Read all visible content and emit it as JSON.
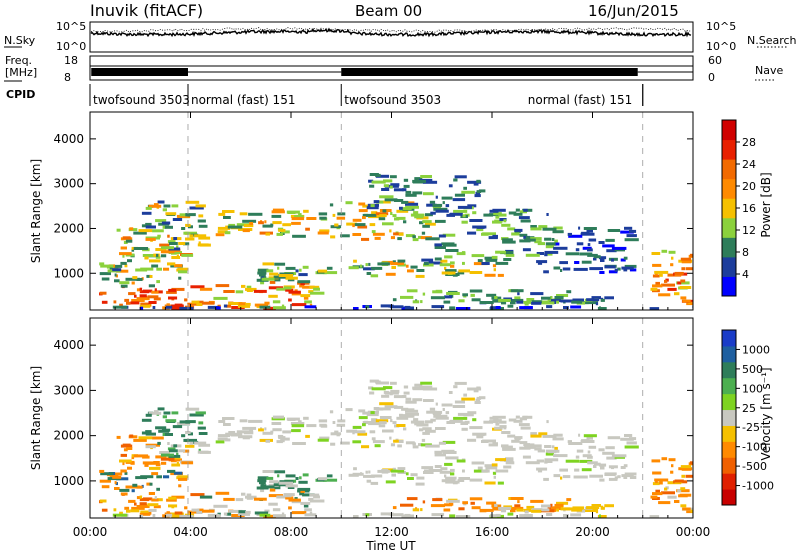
{
  "header": {
    "site": "Inuvik (fitACF)",
    "beam": "Beam 00",
    "date": "16/Jun/2015"
  },
  "status_panels": {
    "nsky_label": "N.Sky",
    "nsearch_label": "N.Search",
    "nsky_ticks": [
      "10^5",
      "10^0"
    ],
    "nsearch_ticks": [
      "10^5",
      "10^0"
    ],
    "freq_label_1": "Freq.",
    "freq_label_2": "[MHz]",
    "freq_ticks": [
      "8",
      "18"
    ],
    "nave_label": "Nave",
    "nave_ticks": [
      "60",
      "0"
    ],
    "cpid_label": "CPID",
    "cpid_segments": [
      {
        "label": "twofsound 3503",
        "start": 0,
        "end": 3.9
      },
      {
        "label": "normal (fast) 151",
        "start": 3.9,
        "end": 10.0
      },
      {
        "label": "twofsound 3503",
        "start": 10.0,
        "end": 22.0
      },
      {
        "label": "normal (fast) 151",
        "start": 22.0,
        "end": 24.0
      }
    ]
  },
  "chart_data": [
    {
      "type": "heatmap",
      "title": "Power",
      "ylabel": "Slant Range [km]",
      "ylim": [
        180,
        4600
      ],
      "yticks": [
        "1000",
        "2000",
        "3000",
        "4000"
      ],
      "xlim": [
        0,
        24
      ],
      "colorbar_label": "Power [dB]",
      "colorbar_ticks": [
        "4",
        "8",
        "12",
        "16",
        "20",
        "24",
        "28"
      ],
      "colorbar_colors": [
        "#0000ff",
        "#1c3d9c",
        "#2e7d5a",
        "#8bd13c",
        "#f5c000",
        "#ff8a00",
        "#f26a00",
        "#e82000",
        "#d00000"
      ]
    },
    {
      "type": "heatmap",
      "title": "Velocity",
      "ylabel": "Slant Range [km]",
      "ylim": [
        180,
        4600
      ],
      "yticks": [
        "1000",
        "2000",
        "3000",
        "4000"
      ],
      "xlim": [
        0,
        24
      ],
      "xticks": [
        "00:00",
        "04:00",
        "08:00",
        "12:00",
        "16:00",
        "20:00",
        "00:00"
      ],
      "xlabel": "Time UT",
      "colorbar_label": "Velocity [m s⁻¹]",
      "colorbar_ticks": [
        "1000",
        "500",
        "100",
        "25",
        "-25",
        "-100",
        "-500",
        "-1000"
      ],
      "colorbar_colors": [
        "#1a3cc8",
        "#1e5fa0",
        "#2e7d5a",
        "#4caf50",
        "#7ed321",
        "#c8c8c0",
        "#f5c000",
        "#ff8a00",
        "#f06000",
        "#e02000",
        "#c80000"
      ]
    }
  ]
}
